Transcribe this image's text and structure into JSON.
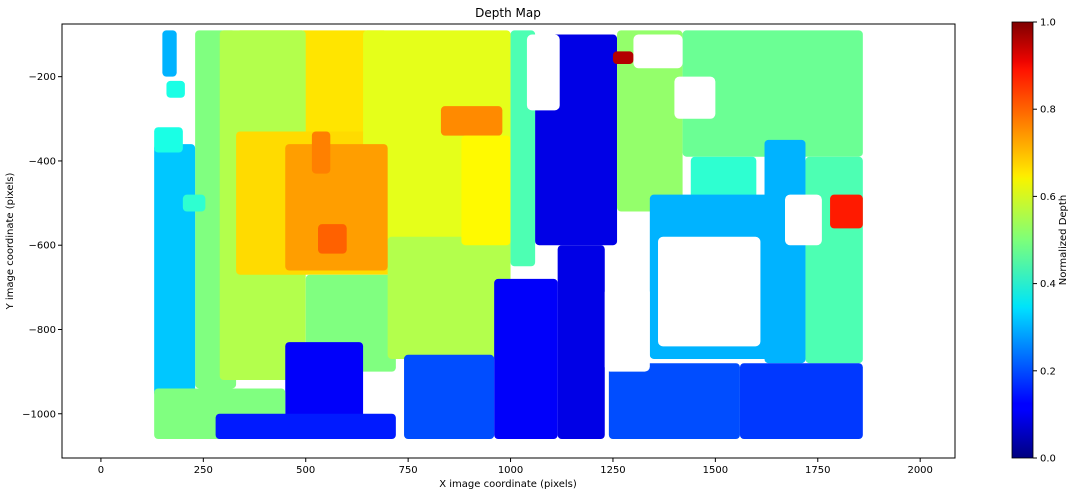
{
  "chart_data": {
    "type": "scatter",
    "title": "Depth Map",
    "xlabel": "X image coordinate (pixels)",
    "ylabel": "Y image coordinate (pixels)",
    "xlim": [
      -95,
      2085
    ],
    "ylim": [
      -1105,
      -75
    ],
    "xticks": [
      0,
      250,
      500,
      750,
      1000,
      1250,
      1500,
      1750,
      2000
    ],
    "yticks": [
      -200,
      -400,
      -600,
      -800,
      -1000
    ],
    "colorbar": {
      "label": "Normalized Depth",
      "range": [
        0,
        1
      ],
      "ticks": [
        0.0,
        0.2,
        0.4,
        0.6,
        0.8,
        1.0
      ],
      "tick_labels": [
        "0.0",
        "0.2",
        "0.4",
        "0.6",
        "0.8",
        "1.0"
      ],
      "colormap": "jet"
    },
    "grid": false,
    "regions": [
      {
        "x0": 330,
        "x1": 700,
        "y0": -90,
        "y1": -330,
        "depth": 0.65
      },
      {
        "x0": 230,
        "x1": 330,
        "y0": -90,
        "y1": -940,
        "depth": 0.5
      },
      {
        "x0": 130,
        "x1": 230,
        "y0": -360,
        "y1": -960,
        "depth": 0.32
      },
      {
        "x0": 150,
        "x1": 185,
        "y0": -90,
        "y1": -200,
        "depth": 0.3
      },
      {
        "x0": 160,
        "x1": 205,
        "y0": -210,
        "y1": -250,
        "depth": 0.4
      },
      {
        "x0": 130,
        "x1": 200,
        "y0": -320,
        "y1": -380,
        "depth": 0.4
      },
      {
        "x0": 200,
        "x1": 255,
        "y0": -480,
        "y1": -520,
        "depth": 0.42
      },
      {
        "x0": 290,
        "x1": 500,
        "y0": -90,
        "y1": -920,
        "depth": 0.55
      },
      {
        "x0": 330,
        "x1": 730,
        "y0": -330,
        "y1": -670,
        "depth": 0.66
      },
      {
        "x0": 500,
        "x1": 720,
        "y0": -670,
        "y1": -900,
        "depth": 0.5
      },
      {
        "x0": 640,
        "x1": 1000,
        "y0": -90,
        "y1": -600,
        "depth": 0.6
      },
      {
        "x0": 700,
        "x1": 1000,
        "y0": -580,
        "y1": -870,
        "depth": 0.55
      },
      {
        "x0": 450,
        "x1": 700,
        "y0": -360,
        "y1": -660,
        "depth": 0.72
      },
      {
        "x0": 515,
        "x1": 560,
        "y0": -330,
        "y1": -430,
        "depth": 0.75
      },
      {
        "x0": 530,
        "x1": 600,
        "y0": -550,
        "y1": -620,
        "depth": 0.78
      },
      {
        "x0": 830,
        "x1": 980,
        "y0": -270,
        "y1": -340,
        "depth": 0.74
      },
      {
        "x0": 880,
        "x1": 1000,
        "y0": -340,
        "y1": -600,
        "depth": 0.63
      },
      {
        "x0": 1000,
        "x1": 1060,
        "y0": -90,
        "y1": -650,
        "depth": 0.45
      },
      {
        "x0": 1060,
        "x1": 1260,
        "y0": -100,
        "y1": -600,
        "depth": 0.1
      },
      {
        "x0": 1115,
        "x1": 1230,
        "y0": -600,
        "y1": -1060,
        "depth": 0.1
      },
      {
        "x0": 960,
        "x1": 1115,
        "y0": -680,
        "y1": -1060,
        "depth": 0.12
      },
      {
        "x0": 1260,
        "x1": 1420,
        "y0": -90,
        "y1": -520,
        "depth": 0.52
      },
      {
        "x0": 1250,
        "x1": 1300,
        "y0": -140,
        "y1": -170,
        "depth": 0.95
      },
      {
        "x0": 1420,
        "x1": 1860,
        "y0": -90,
        "y1": -390,
        "depth": 0.48
      },
      {
        "x0": 1440,
        "x1": 1600,
        "y0": -390,
        "y1": -520,
        "depth": 0.42
      },
      {
        "x0": 1340,
        "x1": 1680,
        "y0": -480,
        "y1": -870,
        "depth": 0.3
      },
      {
        "x0": 1620,
        "x1": 1720,
        "y0": -350,
        "y1": -880,
        "depth": 0.3
      },
      {
        "x0": 1720,
        "x1": 1860,
        "y0": -390,
        "y1": -880,
        "depth": 0.45
      },
      {
        "x0": 1780,
        "x1": 1860,
        "y0": -480,
        "y1": -560,
        "depth": 0.85
      },
      {
        "x0": 1560,
        "x1": 1860,
        "y0": -880,
        "y1": -1060,
        "depth": 0.18
      },
      {
        "x0": 1240,
        "x1": 1560,
        "y0": -880,
        "y1": -1060,
        "depth": 0.2
      },
      {
        "x0": 740,
        "x1": 960,
        "y0": -860,
        "y1": -1060,
        "depth": 0.2
      },
      {
        "x0": 450,
        "x1": 640,
        "y0": -830,
        "y1": -1060,
        "depth": 0.12
      },
      {
        "x0": 130,
        "x1": 450,
        "y0": -940,
        "y1": -1060,
        "depth": 0.5
      },
      {
        "x0": 280,
        "x1": 720,
        "y0": -1000,
        "y1": -1060,
        "depth": 0.15
      }
    ],
    "holes": [
      {
        "x0": 1300,
        "x1": 1420,
        "y0": -100,
        "y1": -180
      },
      {
        "x0": 1400,
        "x1": 1500,
        "y0": -200,
        "y1": -300
      },
      {
        "x0": 1670,
        "x1": 1760,
        "y0": -480,
        "y1": -600
      },
      {
        "x0": 1360,
        "x1": 1610,
        "y0": -580,
        "y1": -840
      },
      {
        "x0": 1230,
        "x1": 1340,
        "y0": -700,
        "y1": -900
      },
      {
        "x0": 1040,
        "x1": 1120,
        "y0": -100,
        "y1": -280
      }
    ]
  }
}
